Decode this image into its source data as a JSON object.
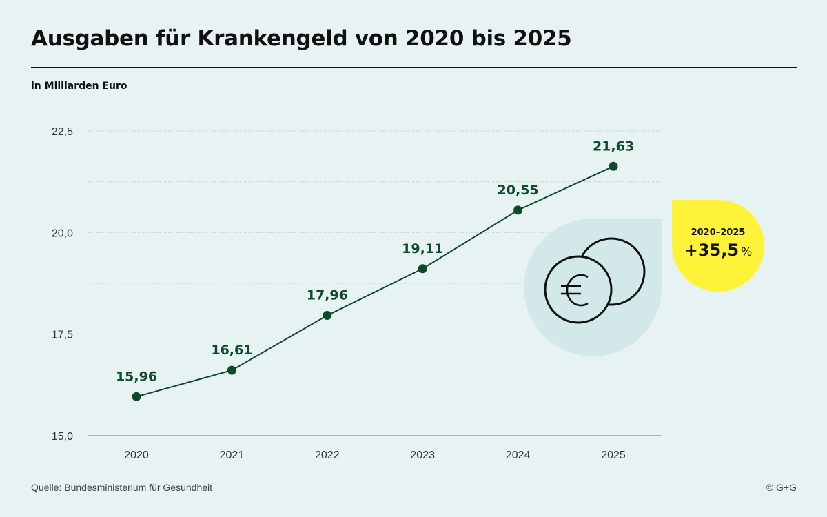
{
  "header": {
    "title": "Ausgaben für Krankengeld von 2020 bis 2025",
    "unit_label": "in Milliarden Euro"
  },
  "badge": {
    "range": "2020–2025",
    "value": "+35,5",
    "unit": "%",
    "color": "#fff33a"
  },
  "icon": {
    "name": "euro-coins-icon",
    "bg_color": "#d3e9e9"
  },
  "footer": {
    "source": "Quelle: Bundesministerium für Gesundheit",
    "copyright": "© G+G"
  },
  "colors": {
    "background": "#e7f3f3",
    "line": "#0f4a2c",
    "label": "#0f4a2c"
  },
  "chart_data": {
    "type": "line",
    "title": "Ausgaben für Krankengeld von 2020 bis 2025",
    "subtitle": "in Milliarden Euro",
    "xlabel": "",
    "ylabel": "",
    "categories": [
      "2020",
      "2021",
      "2022",
      "2023",
      "2024",
      "2025"
    ],
    "series": [
      {
        "name": "Krankengeld",
        "values": [
          15.96,
          16.61,
          17.96,
          19.11,
          20.55,
          21.63
        ],
        "labels": [
          "15,96",
          "16,61",
          "17,96",
          "19,11",
          "20,55",
          "21,63"
        ]
      }
    ],
    "ylim": [
      15.0,
      22.5
    ],
    "yticks": [
      15.0,
      17.5,
      20.0,
      22.5
    ],
    "ytick_labels": [
      "15,0",
      "17,5",
      "20,0",
      "22,5"
    ],
    "gridlines": [
      15.0,
      16.25,
      17.5,
      18.75,
      20.0,
      21.25,
      22.5
    ],
    "grid": true,
    "legend": "none"
  }
}
